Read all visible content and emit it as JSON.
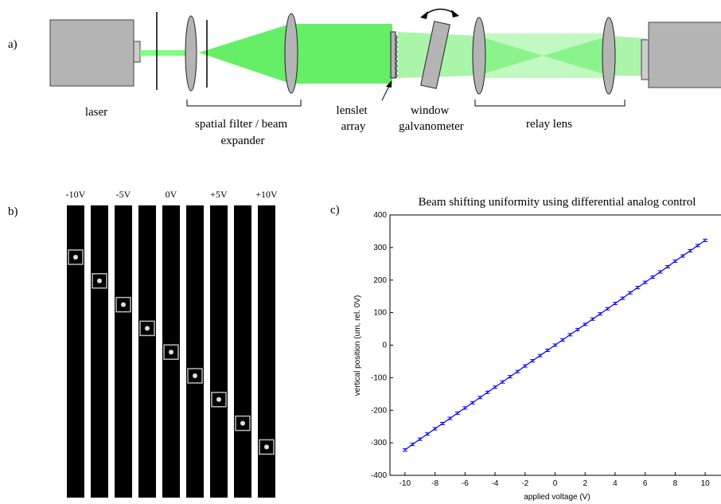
{
  "panel_a": {
    "label": "a)",
    "laser": "laser",
    "spatial_filter": [
      "spatial filter / beam",
      "expander"
    ],
    "lenslet": [
      "lenslet",
      "array"
    ],
    "window": [
      "window",
      "galvanometer"
    ],
    "relay": "relay lens"
  },
  "panel_b": {
    "label": "b)",
    "voltages": [
      "-10V",
      "-5V",
      "0V",
      "+5V",
      "+10V"
    ]
  },
  "chart_data": {
    "type": "line",
    "panel_label": "c)",
    "title": "Beam shifting uniformity using differential analog control",
    "x_label": "applied voltage (V)",
    "y_label": "vertical position (um, rel. 0V)",
    "x": [
      -10,
      -9.5,
      -9,
      -8.5,
      -8,
      -7.5,
      -7,
      -6.5,
      -6,
      -5.5,
      -5,
      -4.5,
      -4,
      -3.5,
      -3,
      -2.5,
      -2,
      -1.5,
      -1,
      -0.5,
      0,
      0.5,
      1,
      1.5,
      2,
      2.5,
      3,
      3.5,
      4,
      4.5,
      5,
      5.5,
      6,
      6.5,
      7,
      7.5,
      8,
      8.5,
      9,
      9.5,
      10
    ],
    "series": [
      {
        "color": "#0000ff",
        "values": [
          -322,
          -305,
          -289,
          -273,
          -257,
          -241,
          -225,
          -209,
          -193,
          -177,
          -161,
          -145,
          -129,
          -113,
          -97,
          -81,
          -64,
          -48,
          -32,
          -16,
          0,
          16,
          32,
          48,
          64,
          80,
          96,
          112,
          128,
          144,
          161,
          177,
          193,
          209,
          225,
          241,
          258,
          274,
          290,
          306,
          322
        ]
      }
    ],
    "xlim": [
      -11,
      11
    ],
    "ylim": [
      -400,
      400
    ],
    "xticks": [
      -10,
      -8,
      -6,
      -4,
      -2,
      0,
      2,
      4,
      6,
      8,
      10
    ],
    "yticks": [
      -400,
      -300,
      -200,
      -100,
      0,
      100,
      200,
      300,
      400
    ]
  }
}
